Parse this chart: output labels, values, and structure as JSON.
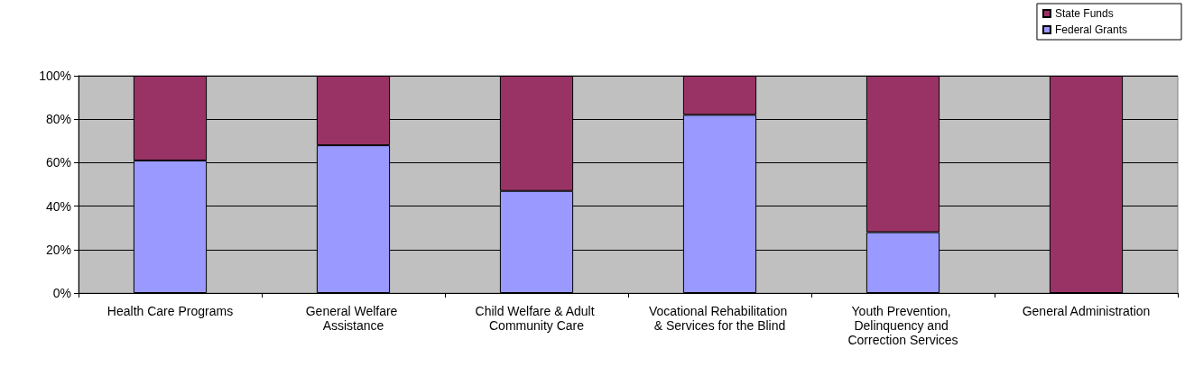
{
  "chart_data": {
    "type": "bar",
    "stacked": true,
    "categories": [
      "Health Care Programs",
      "General Welfare Assistance",
      "Child Welfare & Adult Community Care",
      "Vocational Rehabilitation & Services for the Blind",
      "Youth Prevention, Delinquency and Correction Services",
      "General Administration"
    ],
    "series": [
      {
        "name": "Federal Grants",
        "color": "#9999ff",
        "values": [
          61,
          68,
          47,
          82,
          28,
          0
        ]
      },
      {
        "name": "State Funds",
        "color": "#993366",
        "values": [
          39,
          32,
          53,
          18,
          72,
          100
        ]
      }
    ],
    "ylim": [
      0,
      100
    ],
    "yticks": [
      {
        "value": 0,
        "label": "0%"
      },
      {
        "value": 20,
        "label": "20%"
      },
      {
        "value": 40,
        "label": "40%"
      },
      {
        "value": 60,
        "label": "60%"
      },
      {
        "value": 80,
        "label": "80%"
      },
      {
        "value": 100,
        "label": "100%"
      }
    ],
    "grid": "y",
    "legend": "top right"
  }
}
